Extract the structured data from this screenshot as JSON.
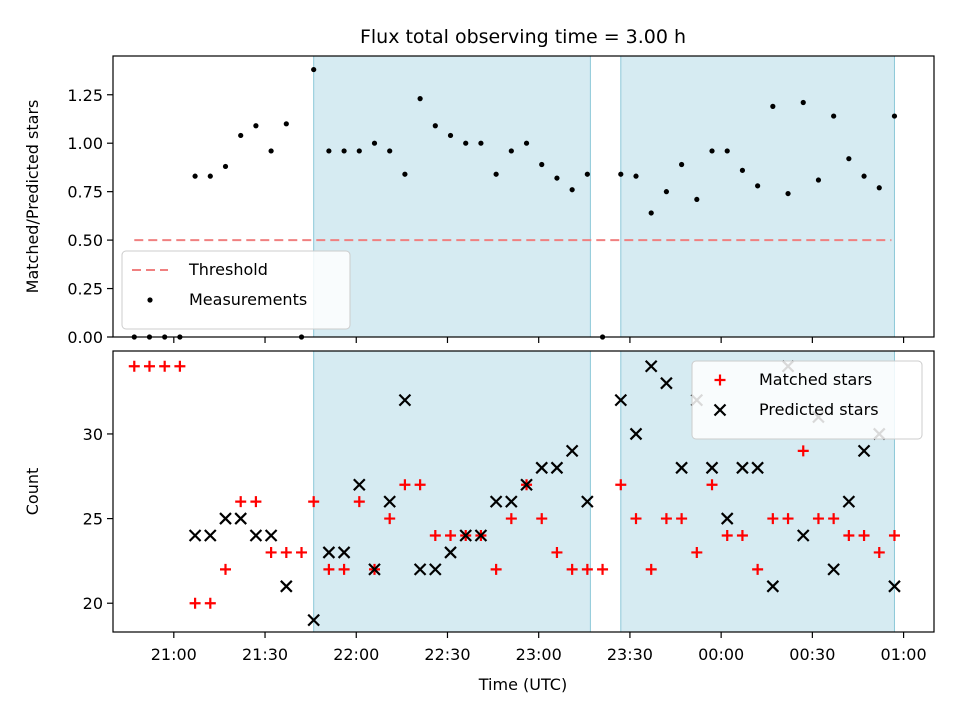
{
  "chart_data": {
    "title": "Flux total observing time = 3.00 h",
    "xlabel": "Time (UTC)",
    "x_ticks": [
      "21:00",
      "21:30",
      "22:00",
      "22:30",
      "23:00",
      "23:30",
      "00:00",
      "00:30",
      "01:00"
    ],
    "shaded_intervals": [
      [
        "21:46",
        "23:17"
      ],
      [
        "23:27",
        "00:57"
      ]
    ],
    "shade_color": "#add8e6",
    "panels": [
      {
        "type": "scatter",
        "ylabel": "Matched/Predicted stars",
        "ylim": [
          0,
          1.45
        ],
        "y_ticks": [
          "0.00",
          "0.25",
          "0.50",
          "0.75",
          "1.00",
          "1.25"
        ],
        "legend_position": "lower-left",
        "threshold": {
          "name": "Threshold",
          "value": 0.5,
          "x_range": [
            "20:47",
            "00:56"
          ],
          "color": "#f08080"
        },
        "series": [
          {
            "name": "Measurements",
            "color": "#000000",
            "marker": "dot",
            "points": [
              [
                "20:47",
                0.0
              ],
              [
                "20:52",
                0.0
              ],
              [
                "20:57",
                0.0
              ],
              [
                "21:02",
                0.0
              ],
              [
                "21:07",
                0.83
              ],
              [
                "21:12",
                0.83
              ],
              [
                "21:17",
                0.88
              ],
              [
                "21:22",
                1.04
              ],
              [
                "21:27",
                1.09
              ],
              [
                "21:32",
                0.96
              ],
              [
                "21:37",
                1.1
              ],
              [
                "21:42",
                0.0
              ],
              [
                "21:46",
                1.38
              ],
              [
                "21:51",
                0.96
              ],
              [
                "21:56",
                0.96
              ],
              [
                "22:01",
                0.96
              ],
              [
                "22:06",
                1.0
              ],
              [
                "22:11",
                0.96
              ],
              [
                "22:16",
                0.84
              ],
              [
                "22:21",
                1.23
              ],
              [
                "22:26",
                1.09
              ],
              [
                "22:31",
                1.04
              ],
              [
                "22:36",
                1.0
              ],
              [
                "22:41",
                1.0
              ],
              [
                "22:46",
                0.84
              ],
              [
                "22:51",
                0.96
              ],
              [
                "22:56",
                1.0
              ],
              [
                "23:01",
                0.89
              ],
              [
                "23:06",
                0.82
              ],
              [
                "23:11",
                0.76
              ],
              [
                "23:16",
                0.84
              ],
              [
                "23:21",
                0.0
              ],
              [
                "23:27",
                0.84
              ],
              [
                "23:32",
                0.83
              ],
              [
                "23:37",
                0.64
              ],
              [
                "23:42",
                0.75
              ],
              [
                "23:47",
                0.89
              ],
              [
                "23:52",
                0.71
              ],
              [
                "23:57",
                0.96
              ],
              [
                "00:02",
                0.96
              ],
              [
                "00:07",
                0.86
              ],
              [
                "00:12",
                0.78
              ],
              [
                "00:17",
                1.19
              ],
              [
                "00:22",
                0.74
              ],
              [
                "00:27",
                1.21
              ],
              [
                "00:32",
                0.81
              ],
              [
                "00:37",
                1.14
              ],
              [
                "00:42",
                0.92
              ],
              [
                "00:47",
                0.83
              ],
              [
                "00:52",
                0.77
              ],
              [
                "00:57",
                1.14
              ]
            ]
          }
        ]
      },
      {
        "type": "scatter",
        "ylabel": "Count",
        "ylim": [
          18.3,
          34.9
        ],
        "y_ticks": [
          "20",
          "25",
          "30"
        ],
        "legend_position": "top-right",
        "series": [
          {
            "name": "Matched stars",
            "color": "#ff0000",
            "marker": "plus",
            "points": [
              [
                "20:47",
                34
              ],
              [
                "20:52",
                34
              ],
              [
                "20:57",
                34
              ],
              [
                "21:02",
                34
              ],
              [
                "21:07",
                20
              ],
              [
                "21:12",
                20
              ],
              [
                "21:17",
                22
              ],
              [
                "21:22",
                26
              ],
              [
                "21:27",
                26
              ],
              [
                "21:32",
                23
              ],
              [
                "21:37",
                23
              ],
              [
                "21:42",
                23
              ],
              [
                "21:46",
                26
              ],
              [
                "21:51",
                22
              ],
              [
                "21:56",
                22
              ],
              [
                "22:01",
                26
              ],
              [
                "22:06",
                22
              ],
              [
                "22:11",
                25
              ],
              [
                "22:16",
                27
              ],
              [
                "22:21",
                27
              ],
              [
                "22:26",
                24
              ],
              [
                "22:31",
                24
              ],
              [
                "22:36",
                24
              ],
              [
                "22:41",
                24
              ],
              [
                "22:46",
                22
              ],
              [
                "22:51",
                25
              ],
              [
                "22:56",
                27
              ],
              [
                "23:01",
                25
              ],
              [
                "23:06",
                23
              ],
              [
                "23:11",
                22
              ],
              [
                "23:16",
                22
              ],
              [
                "23:21",
                22
              ],
              [
                "23:27",
                27
              ],
              [
                "23:32",
                25
              ],
              [
                "23:37",
                22
              ],
              [
                "23:42",
                25
              ],
              [
                "23:47",
                25
              ],
              [
                "23:52",
                23
              ],
              [
                "23:57",
                27
              ],
              [
                "00:02",
                24
              ],
              [
                "00:07",
                24
              ],
              [
                "00:12",
                22
              ],
              [
                "00:17",
                25
              ],
              [
                "00:22",
                25
              ],
              [
                "00:27",
                29
              ],
              [
                "00:32",
                25
              ],
              [
                "00:37",
                25
              ],
              [
                "00:42",
                24
              ],
              [
                "00:47",
                24
              ],
              [
                "00:52",
                23
              ],
              [
                "00:57",
                24
              ]
            ]
          },
          {
            "name": "Predicted stars",
            "color": "#000000",
            "marker": "x",
            "points": [
              [
                "21:07",
                24
              ],
              [
                "21:12",
                24
              ],
              [
                "21:17",
                25
              ],
              [
                "21:22",
                25
              ],
              [
                "21:27",
                24
              ],
              [
                "21:32",
                24
              ],
              [
                "21:37",
                21
              ],
              [
                "21:46",
                19
              ],
              [
                "21:51",
                23
              ],
              [
                "21:56",
                23
              ],
              [
                "22:01",
                27
              ],
              [
                "22:06",
                22
              ],
              [
                "22:11",
                26
              ],
              [
                "22:16",
                32
              ],
              [
                "22:21",
                22
              ],
              [
                "22:26",
                22
              ],
              [
                "22:31",
                23
              ],
              [
                "22:36",
                24
              ],
              [
                "22:41",
                24
              ],
              [
                "22:46",
                26
              ],
              [
                "22:51",
                26
              ],
              [
                "22:56",
                27
              ],
              [
                "23:01",
                28
              ],
              [
                "23:06",
                28
              ],
              [
                "23:11",
                29
              ],
              [
                "23:16",
                26
              ],
              [
                "23:27",
                32
              ],
              [
                "23:32",
                30
              ],
              [
                "23:37",
                34
              ],
              [
                "23:42",
                33
              ],
              [
                "23:47",
                28
              ],
              [
                "23:52",
                32
              ],
              [
                "23:57",
                28
              ],
              [
                "00:02",
                25
              ],
              [
                "00:07",
                28
              ],
              [
                "00:12",
                28
              ],
              [
                "00:17",
                21
              ],
              [
                "00:22",
                34
              ],
              [
                "00:27",
                24
              ],
              [
                "00:32",
                31
              ],
              [
                "00:37",
                22
              ],
              [
                "00:42",
                26
              ],
              [
                "00:47",
                29
              ],
              [
                "00:52",
                30
              ],
              [
                "00:57",
                21
              ]
            ]
          }
        ]
      }
    ]
  }
}
